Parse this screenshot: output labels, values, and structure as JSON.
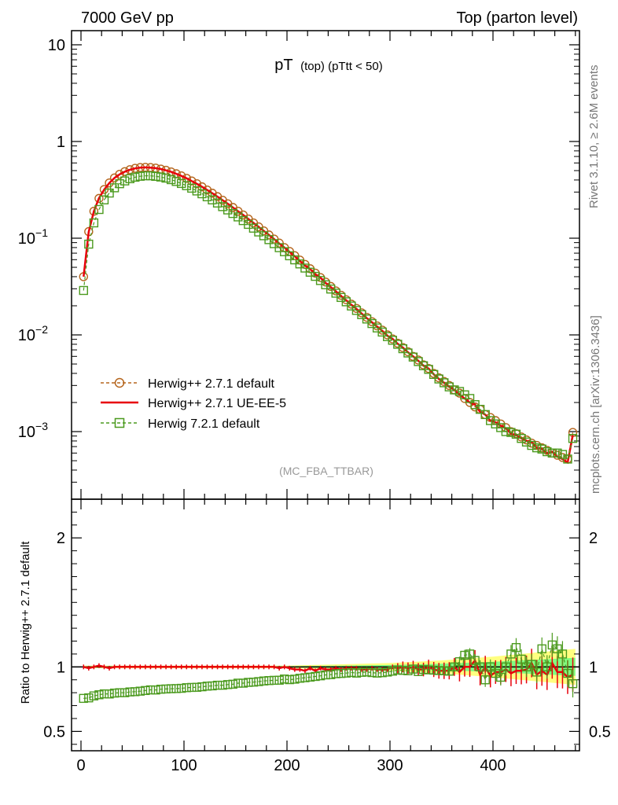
{
  "header": {
    "left": "7000 GeV pp",
    "right": "Top (parton level)"
  },
  "plot_title": {
    "main": "pT",
    "sub": "(top) (pTtt < 50)"
  },
  "side_labels": {
    "rivet": "Rivet 3.1.10, ≥ 2.6M events",
    "mcplots": "mcplots.cern.ch [arXiv:1306.3436]"
  },
  "analysis_tag": "(MC_FBA_TTBAR)",
  "ratio_ylabel": "Ratio to Herwig++ 2.7.1 default",
  "colors": {
    "brown": "#b5651d",
    "red": "#e8000b",
    "green": "#4b9a1e",
    "band_yellow": "#ffff80",
    "band_green": "#80ff80"
  },
  "chart_data": [
    {
      "type": "line",
      "title": "pT (top) (pTtt < 50)",
      "ylog": true,
      "xlim": [
        -10,
        490
      ],
      "ylim": [
        0.0002,
        14
      ],
      "yticks": [
        0.001,
        0.01,
        0.1,
        1,
        10
      ],
      "ytick_labels": [
        {
          "base": "10",
          "exp": "−3"
        },
        {
          "base": "10",
          "exp": "−2"
        },
        {
          "base": "10",
          "exp": "−1"
        },
        {
          "base": "1",
          "exp": ""
        },
        {
          "base": "10",
          "exp": ""
        }
      ],
      "legend_position": "bottom-left",
      "x": [
        2.5,
        7.5,
        12.5,
        17.5,
        22.5,
        27.5,
        32.5,
        37.5,
        42.5,
        47.5,
        52.5,
        57.5,
        62.5,
        67.5,
        72.5,
        77.5,
        82.5,
        87.5,
        92.5,
        97.5,
        102.5,
        107.5,
        112.5,
        117.5,
        122.5,
        127.5,
        132.5,
        137.5,
        142.5,
        147.5,
        152.5,
        157.5,
        162.5,
        167.5,
        172.5,
        177.5,
        182.5,
        187.5,
        192.5,
        197.5,
        202.5,
        207.5,
        212.5,
        217.5,
        222.5,
        227.5,
        232.5,
        237.5,
        242.5,
        247.5,
        252.5,
        257.5,
        262.5,
        267.5,
        272.5,
        277.5,
        282.5,
        287.5,
        292.5,
        297.5,
        302.5,
        307.5,
        312.5,
        317.5,
        322.5,
        327.5,
        332.5,
        337.5,
        342.5,
        347.5,
        352.5,
        357.5,
        362.5,
        367.5,
        372.5,
        377.5,
        382.5,
        387.5,
        392.5,
        397.5,
        402.5,
        407.5,
        412.5,
        417.5,
        422.5,
        427.5,
        432.5,
        437.5,
        442.5,
        447.5,
        452.5,
        457.5,
        462.5,
        467.5,
        472.5,
        477.5
      ],
      "series": [
        {
          "name": "Herwig++ 2.7.1 default",
          "color": "#b5651d",
          "style": "dashed-circle",
          "values": [
            0.04,
            0.117,
            0.19,
            0.258,
            0.319,
            0.373,
            0.42,
            0.458,
            0.488,
            0.511,
            0.528,
            0.538,
            0.541,
            0.538,
            0.531,
            0.519,
            0.504,
            0.485,
            0.464,
            0.441,
            0.416,
            0.391,
            0.366,
            0.34,
            0.315,
            0.292,
            0.269,
            0.247,
            0.227,
            0.208,
            0.19,
            0.174,
            0.158,
            0.144,
            0.131,
            0.119,
            0.108,
            0.098,
            0.089,
            0.08,
            0.073,
            0.066,
            0.0594,
            0.0536,
            0.0483,
            0.0435,
            0.0392,
            0.0352,
            0.0317,
            0.0285,
            0.0257,
            0.0231,
            0.0208,
            0.0188,
            0.0169,
            0.0152,
            0.0137,
            0.0124,
            0.0112,
            0.01,
            0.0091,
            0.0082,
            0.0074,
            0.0067,
            0.006,
            0.0055,
            0.0049,
            0.0045,
            0.004,
            0.0036,
            0.0033,
            0.003,
            0.0027,
            0.0025,
            0.0022,
            0.002,
            0.0018,
            0.0017,
            0.0015,
            0.0014,
            0.0013,
            0.0012,
            0.0011,
            0.001,
            0.00095,
            0.00088,
            0.00082,
            0.00076,
            0.00072,
            0.00068,
            0.00064,
            0.0006,
            0.00057,
            0.00054,
            0.00052,
            0.00098
          ]
        },
        {
          "name": "Herwig++ 2.7.1 UE-EE-5",
          "color": "#e8000b",
          "style": "solid",
          "values": [
            0.04,
            0.116,
            0.19,
            0.26,
            0.318,
            0.372,
            0.42,
            0.457,
            0.487,
            0.51,
            0.527,
            0.537,
            0.54,
            0.537,
            0.53,
            0.519,
            0.503,
            0.485,
            0.463,
            0.44,
            0.416,
            0.39,
            0.365,
            0.34,
            0.315,
            0.292,
            0.269,
            0.247,
            0.227,
            0.208,
            0.19,
            0.174,
            0.158,
            0.144,
            0.131,
            0.119,
            0.108,
            0.098,
            0.088,
            0.08,
            0.072,
            0.065,
            0.058,
            0.052,
            0.048,
            0.042,
            0.039,
            0.0345,
            0.0312,
            0.0282,
            0.0252,
            0.0228,
            0.0205,
            0.0186,
            0.0166,
            0.0149,
            0.0135,
            0.0122,
            0.011,
            0.0098,
            0.0091,
            0.0081,
            0.0074,
            0.0066,
            0.006,
            0.0054,
            0.0048,
            0.0045,
            0.0039,
            0.0035,
            0.0032,
            0.0029,
            0.0027,
            0.0024,
            0.0022,
            0.002,
            0.0019,
            0.0016,
            0.0015,
            0.0013,
            0.00125,
            0.00115,
            0.00108,
            0.00095,
            0.00092,
            0.00085,
            0.0008,
            0.00078,
            0.00068,
            0.00066,
            0.0006,
            0.00062,
            0.00055,
            0.00052,
            0.00048,
            0.00092
          ]
        },
        {
          "name": "Herwig 7.2.1 default",
          "color": "#4b9a1e",
          "style": "dashed-square",
          "values": [
            0.0288,
            0.0868,
            0.144,
            0.198,
            0.249,
            0.293,
            0.332,
            0.366,
            0.391,
            0.412,
            0.427,
            0.437,
            0.442,
            0.442,
            0.436,
            0.429,
            0.418,
            0.403,
            0.386,
            0.368,
            0.349,
            0.329,
            0.308,
            0.288,
            0.268,
            0.249,
            0.231,
            0.212,
            0.196,
            0.18,
            0.166,
            0.152,
            0.139,
            0.127,
            0.116,
            0.106,
            0.0966,
            0.0878,
            0.0798,
            0.0725,
            0.0658,
            0.0597,
            0.0542,
            0.0491,
            0.0445,
            0.0403,
            0.0365,
            0.033,
            0.0298,
            0.027,
            0.0244,
            0.022,
            0.0199,
            0.0179,
            0.0162,
            0.0146,
            0.0131,
            0.0118,
            0.0107,
            0.0096,
            0.0088,
            0.008,
            0.0072,
            0.0065,
            0.0059,
            0.0053,
            0.0048,
            0.0044,
            0.0039,
            0.0035,
            0.0032,
            0.0029,
            0.0027,
            0.0026,
            0.0024,
            0.0022,
            0.0019,
            0.0017,
            0.0015,
            0.0013,
            0.0012,
            0.0011,
            0.001,
            0.00098,
            0.00094,
            0.00085,
            0.00078,
            0.00072,
            0.00068,
            0.00066,
            0.00062,
            0.0006,
            0.0006,
            0.00058,
            0.00052,
            0.00085
          ]
        }
      ]
    },
    {
      "type": "line",
      "ylabel": "Ratio to Herwig++ 2.7.1 default",
      "xlim": [
        -10,
        490
      ],
      "ylim": [
        0.35,
        2.3
      ],
      "yticks": [
        0.5,
        1,
        2
      ],
      "ytick_labels": [
        "0.5",
        "1",
        "2"
      ],
      "xticks": [
        0,
        100,
        200,
        300,
        400
      ],
      "xtick_labels": [
        "0",
        "100",
        "200",
        "300",
        "400"
      ],
      "band": {
        "x": [
          2.5,
          50,
          100,
          150,
          200,
          250,
          300,
          350,
          400,
          440,
          480
        ],
        "yellow_halfwidth": [
          0.01,
          0.01,
          0.01,
          0.01,
          0.01,
          0.02,
          0.03,
          0.05,
          0.08,
          0.11,
          0.14
        ],
        "green_halfwidth": [
          0.005,
          0.005,
          0.005,
          0.005,
          0.005,
          0.01,
          0.015,
          0.025,
          0.04,
          0.055,
          0.07
        ]
      },
      "series": [
        {
          "name": "Herwig++ 2.7.1 UE-EE-5",
          "color": "#e8000b",
          "values": [
            1.0,
            0.99,
            1.0,
            1.01,
            1.0,
            0.99,
            1.0,
            1.0,
            1.0,
            1.0,
            1.0,
            1.0,
            1.0,
            1.0,
            1.0,
            1.0,
            1.0,
            1.0,
            1.0,
            1.0,
            1.0,
            1.0,
            1.0,
            1.0,
            1.0,
            1.0,
            1.0,
            1.0,
            1.0,
            1.0,
            1.0,
            1.0,
            1.0,
            1.0,
            1.0,
            1.0,
            1.0,
            1.0,
            0.99,
            1.0,
            0.99,
            0.98,
            0.98,
            0.97,
            0.99,
            0.97,
            0.99,
            0.98,
            0.98,
            0.99,
            0.98,
            0.99,
            0.99,
            0.99,
            0.98,
            0.98,
            0.99,
            0.98,
            0.98,
            0.98,
            1.0,
            0.99,
            1.0,
            0.99,
            1.0,
            0.98,
            0.98,
            1.0,
            0.98,
            0.97,
            0.97,
            0.97,
            1.0,
            0.96,
            1.0,
            1.0,
            1.05,
            0.94,
            1.0,
            0.93,
            0.96,
            0.96,
            0.98,
            0.95,
            0.97,
            0.97,
            0.98,
            1.03,
            0.94,
            0.97,
            0.94,
            1.03,
            0.96,
            0.96,
            0.92,
            0.94
          ]
        },
        {
          "name": "Herwig 7.2.1 default",
          "color": "#4b9a1e",
          "values": [
            0.756,
            0.76,
            0.775,
            0.784,
            0.791,
            0.79,
            0.797,
            0.8,
            0.8,
            0.806,
            0.808,
            0.812,
            0.817,
            0.822,
            0.821,
            0.827,
            0.829,
            0.831,
            0.832,
            0.834,
            0.839,
            0.841,
            0.842,
            0.846,
            0.851,
            0.853,
            0.858,
            0.858,
            0.863,
            0.866,
            0.874,
            0.874,
            0.88,
            0.882,
            0.886,
            0.891,
            0.894,
            0.896,
            0.897,
            0.906,
            0.901,
            0.905,
            0.912,
            0.916,
            0.921,
            0.926,
            0.931,
            0.938,
            0.94,
            0.947,
            0.949,
            0.952,
            0.957,
            0.952,
            0.958,
            0.961,
            0.956,
            0.952,
            0.955,
            0.96,
            0.967,
            0.976,
            0.973,
            0.97,
            0.983,
            0.964,
            0.98,
            0.977,
            0.975,
            0.972,
            0.97,
            0.967,
            1.0,
            1.04,
            1.09,
            1.1,
            1.05,
            1.0,
            0.9,
            1.0,
            0.95,
            0.92,
            1.0,
            1.1,
            1.15,
            1.06,
            1.0,
            1.02,
            0.96,
            1.14,
            1.0,
            1.17,
            1.14,
            1.1,
            0.95,
            0.87
          ]
        }
      ]
    }
  ]
}
